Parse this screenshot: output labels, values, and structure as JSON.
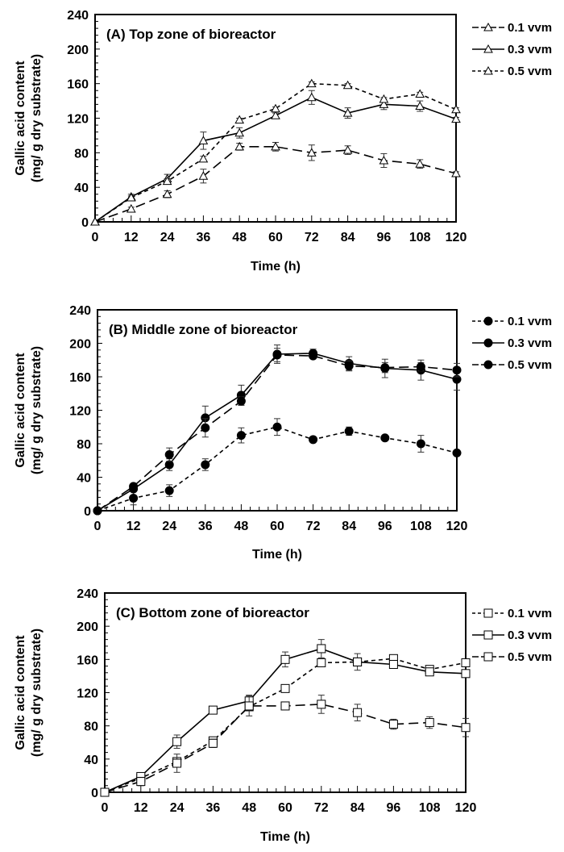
{
  "chart_data": [
    {
      "type": "line",
      "title": "(A)  Top zone of bioreactor",
      "xlabel": "Time (h)",
      "ylabel": [
        "Gallic acid content",
        "(mg/ g dry substrate)"
      ],
      "x": [
        0,
        12,
        24,
        36,
        48,
        60,
        72,
        84,
        96,
        108,
        120
      ],
      "xticks": [
        "0",
        "12",
        "24",
        "36",
        "48",
        "60",
        "72",
        "84",
        "96",
        "108",
        "120"
      ],
      "yticks": [
        "0",
        "40",
        "80",
        "120",
        "160",
        "200",
        "240"
      ],
      "xlim": [
        0,
        120
      ],
      "ylim": [
        0,
        240
      ],
      "grid": false,
      "legend_position": "right",
      "marker": "triangle-open",
      "series": [
        {
          "name": "0.1 vvm",
          "dash": "long",
          "values": [
            0,
            15,
            32,
            53,
            87,
            87,
            80,
            83,
            71,
            67,
            56
          ],
          "errors": [
            0,
            2,
            4,
            8,
            4,
            5,
            9,
            5,
            8,
            5,
            2
          ]
        },
        {
          "name": "0.3 vvm",
          "dash": "solid",
          "values": [
            0,
            29,
            50,
            94,
            103,
            123,
            144,
            126,
            136,
            134,
            119
          ],
          "errors": [
            0,
            3,
            5,
            10,
            6,
            3,
            8,
            6,
            6,
            6,
            2
          ]
        },
        {
          "name": "0.5 vvm",
          "dash": "short",
          "values": [
            0,
            28,
            47,
            73,
            118,
            131,
            160,
            158,
            142,
            148,
            130
          ],
          "errors": [
            0,
            2,
            3,
            3,
            2,
            2,
            2,
            2,
            2,
            2,
            2
          ]
        }
      ]
    },
    {
      "type": "line",
      "title": "(B)  Middle zone of bioreactor",
      "xlabel": "Time (h)",
      "ylabel": [
        "Gallic acid content",
        "(mg/ g dry substrate)"
      ],
      "x": [
        0,
        12,
        24,
        36,
        48,
        60,
        72,
        84,
        96,
        108,
        120
      ],
      "xticks": [
        "0",
        "12",
        "24",
        "36",
        "48",
        "60",
        "72",
        "84",
        "96",
        "108",
        "120"
      ],
      "yticks": [
        "0",
        "40",
        "80",
        "120",
        "160",
        "200",
        "240"
      ],
      "xlim": [
        0,
        120
      ],
      "ylim": [
        0,
        240
      ],
      "grid": false,
      "legend_position": "right",
      "marker": "circle-filled",
      "series": [
        {
          "name": "0.1 vvm",
          "dash": "short",
          "values": [
            0,
            15,
            24,
            55,
            90,
            100,
            85,
            95,
            87,
            80,
            69
          ],
          "errors": [
            0,
            8,
            7,
            7,
            9,
            10,
            2,
            5,
            2,
            10,
            2
          ]
        },
        {
          "name": "0.3 vvm",
          "dash": "solid",
          "values": [
            0,
            26,
            55,
            111,
            138,
            187,
            188,
            176,
            170,
            168,
            157
          ],
          "errors": [
            0,
            3,
            7,
            14,
            12,
            11,
            5,
            8,
            11,
            12,
            13
          ]
        },
        {
          "name": "0.5 vvm",
          "dash": "long",
          "values": [
            0,
            29,
            67,
            99,
            131,
            186,
            185,
            173,
            171,
            172,
            168
          ],
          "errors": [
            0,
            3,
            8,
            11,
            5,
            8,
            3,
            6,
            6,
            5,
            8
          ]
        }
      ]
    },
    {
      "type": "line",
      "title": "(C)  Bottom zone of bioreactor",
      "xlabel": "Time (h)",
      "ylabel": [
        "Gallic acid content",
        "(mg/ g dry substrate)"
      ],
      "x": [
        0,
        12,
        24,
        36,
        48,
        60,
        72,
        84,
        96,
        108,
        120
      ],
      "xticks": [
        "0",
        "12",
        "24",
        "36",
        "48",
        "60",
        "72",
        "84",
        "96",
        "108",
        "120"
      ],
      "yticks": [
        "0",
        "40",
        "80",
        "120",
        "160",
        "200",
        "240"
      ],
      "xlim": [
        0,
        120
      ],
      "ylim": [
        0,
        240
      ],
      "grid": false,
      "legend_position": "right",
      "marker": "square-open",
      "series": [
        {
          "name": "0.1 vvm",
          "dash": "short",
          "values": [
            0,
            17,
            37,
            62,
            103,
            125,
            156,
            157,
            161,
            148,
            156
          ],
          "errors": [
            0,
            2,
            3,
            3,
            3,
            2,
            2,
            2,
            2,
            2,
            2
          ]
        },
        {
          "name": "0.3 vvm",
          "dash": "solid",
          "values": [
            0,
            19,
            61,
            99,
            110,
            160,
            173,
            157,
            154,
            145,
            143
          ],
          "errors": [
            0,
            3,
            8,
            3,
            7,
            9,
            11,
            10,
            3,
            2,
            2
          ]
        },
        {
          "name": "0.5 vvm",
          "dash": "long",
          "values": [
            0,
            13,
            35,
            59,
            104,
            104,
            106,
            96,
            82,
            84,
            78
          ],
          "errors": [
            0,
            5,
            11,
            5,
            12,
            2,
            11,
            10,
            6,
            7,
            11
          ]
        }
      ]
    }
  ]
}
